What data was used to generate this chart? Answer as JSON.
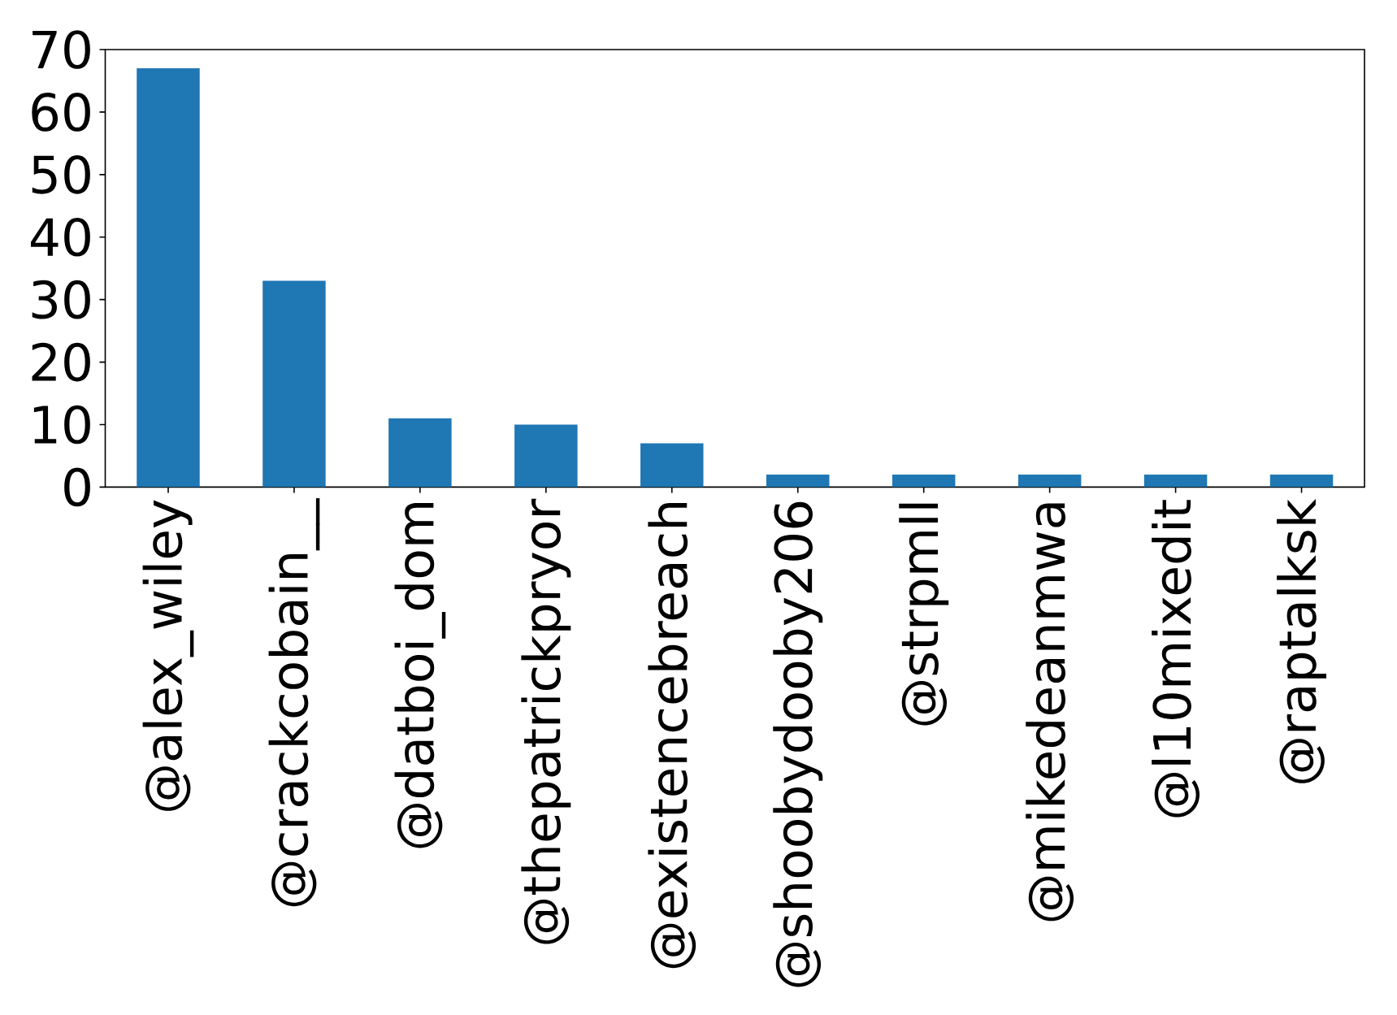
{
  "chart_data": {
    "type": "bar",
    "categories": [
      "@alex_wiley",
      "@crackcobain__",
      "@datboi_dom",
      "@thepatrickpryor",
      "@existencebreach",
      "@shoobydooby206",
      "@strpmll",
      "@mikedeanmwa",
      "@l10mixedit",
      "@raptalksk"
    ],
    "values": [
      67,
      33,
      11,
      10,
      7,
      2,
      2,
      2,
      2,
      2
    ],
    "color": "#1f77b4",
    "ylim": [
      0,
      70
    ],
    "yticks": [
      0,
      10,
      20,
      30,
      40,
      50,
      60,
      70
    ]
  }
}
